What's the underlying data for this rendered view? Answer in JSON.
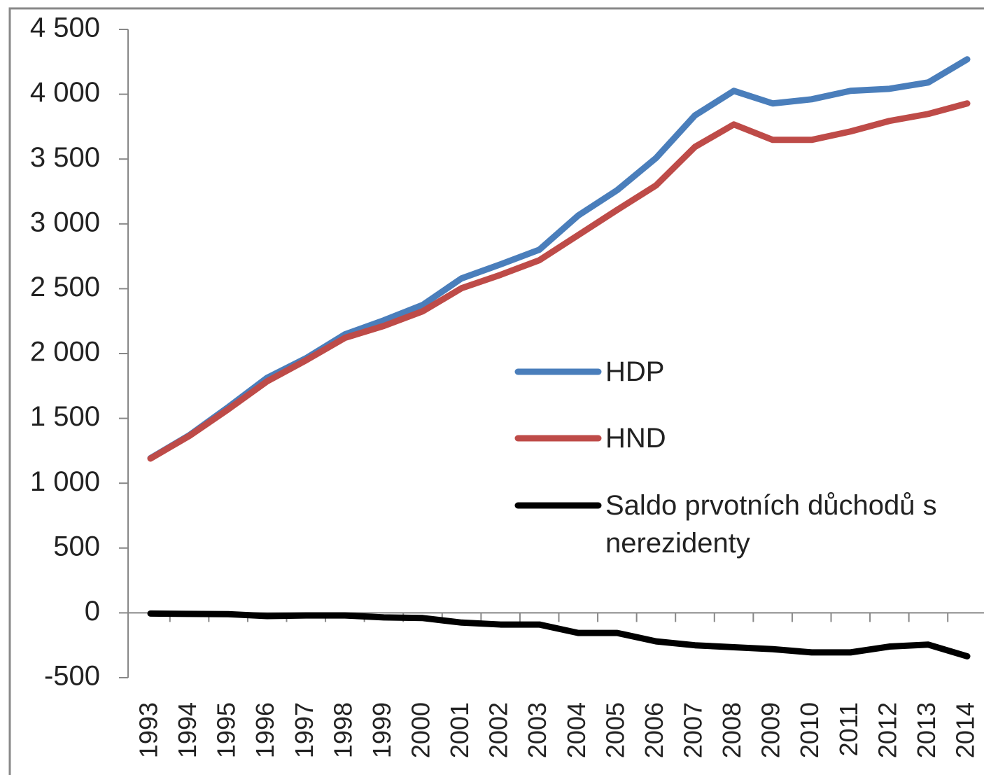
{
  "chart_data": {
    "type": "line",
    "categories": [
      "1993",
      "1994",
      "1995",
      "1996",
      "1997",
      "1998",
      "1999",
      "2000",
      "2001",
      "2002",
      "2003",
      "2004",
      "2005",
      "2006",
      "2007",
      "2008",
      "2009",
      "2010",
      "2011",
      "2012",
      "2013",
      "2014"
    ],
    "series": [
      {
        "name": "HDP",
        "color": "#4a7ebb",
        "values": [
          1193,
          1370,
          1587,
          1813,
          1964,
          2148,
          2256,
          2375,
          2580,
          2688,
          2801,
          3065,
          3260,
          3508,
          3837,
          4026,
          3929,
          3961,
          4026,
          4042,
          4091,
          4269
        ]
      },
      {
        "name": "HND",
        "color": "#be4b48",
        "values": [
          1190,
          1365,
          1570,
          1786,
          1948,
          2121,
          2213,
          2326,
          2504,
          2607,
          2720,
          2914,
          3108,
          3297,
          3594,
          3767,
          3648,
          3648,
          3713,
          3794,
          3848,
          3929
        ]
      },
      {
        "name": "Saldo prvotních důchodů s nerezidenty",
        "color": "#000000",
        "values": [
          -5,
          -8,
          -10,
          -25,
          -20,
          -20,
          -35,
          -40,
          -75,
          -90,
          -90,
          -155,
          -155,
          -220,
          -250,
          -265,
          -280,
          -305,
          -305,
          -260,
          -245,
          -335
        ]
      }
    ],
    "ylim": [
      -500,
      4500
    ],
    "yticks": [
      -500,
      0,
      500,
      {
        "value": 1000,
        "label": "1 000"
      },
      {
        "value": 1500,
        "label": "1 500"
      },
      {
        "value": 2000,
        "label": "2 000"
      },
      {
        "value": 2500,
        "label": "2 500"
      },
      {
        "value": 3000,
        "label": "3 000"
      },
      {
        "value": 3500,
        "label": "3 500"
      },
      {
        "value": 4000,
        "label": "4 000"
      },
      {
        "value": 4500,
        "label": "4 500"
      }
    ]
  }
}
